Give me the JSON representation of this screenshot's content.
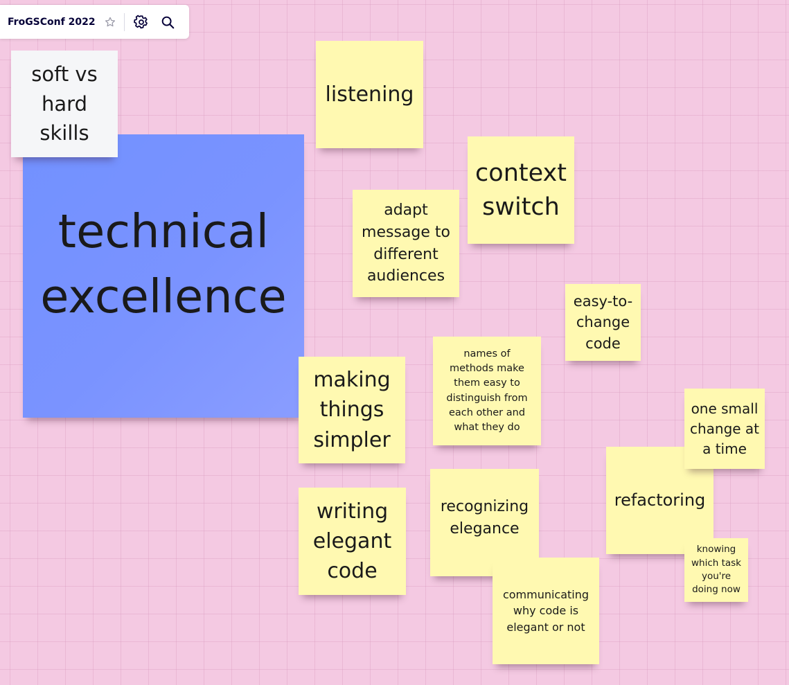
{
  "board": {
    "title": "FroGSConf 2022",
    "background_color": "#f4c9e2",
    "icons": {
      "star": "star-icon",
      "settings": "gear-icon",
      "search": "search-icon"
    }
  },
  "notes": {
    "soft_vs_hard": {
      "lines": [
        "soft vs",
        "hard",
        "skills"
      ],
      "color": "#f5f6f8"
    },
    "technical_excellence": {
      "lines": [
        "technical",
        "excellence"
      ],
      "color": "#7a93ff"
    },
    "listening": {
      "lines": [
        "listening"
      ],
      "color": "#fff9b1"
    },
    "context_switch": {
      "lines": [
        "context",
        "switch"
      ],
      "color": "#fff9b1"
    },
    "adapt_message": {
      "lines": [
        "adapt",
        "message to",
        "different",
        "audiences"
      ],
      "color": "#fff9b1"
    },
    "easy_to_change": {
      "lines": [
        "easy-to-",
        "change",
        "code"
      ],
      "color": "#fff9b1"
    },
    "names_of_methods": {
      "lines": [
        "names of",
        "methods make",
        "them easy to",
        "distinguish from",
        "each other and",
        "what they do"
      ],
      "color": "#fff9b1"
    },
    "making_things_simpler": {
      "lines": [
        "making",
        "things",
        "simpler"
      ],
      "color": "#fff9b1"
    },
    "one_small_change": {
      "lines": [
        "one small",
        "change at",
        "a time"
      ],
      "color": "#fff9b1"
    },
    "refactoring": {
      "lines": [
        "refactoring"
      ],
      "color": "#fff9b1"
    },
    "knowing_which_task": {
      "lines": [
        "knowing",
        "which task",
        "you're",
        "doing now"
      ],
      "color": "#fff9b1"
    },
    "writing_elegant_code": {
      "lines": [
        "writing",
        "elegant",
        "code"
      ],
      "color": "#fff9b1"
    },
    "recognizing_elegance": {
      "lines": [
        "recognizing",
        "elegance"
      ],
      "color": "#fff9b1"
    },
    "communicating_why": {
      "lines": [
        "communicating",
        "why code is",
        "elegant or not"
      ],
      "color": "#fff9b1"
    }
  }
}
